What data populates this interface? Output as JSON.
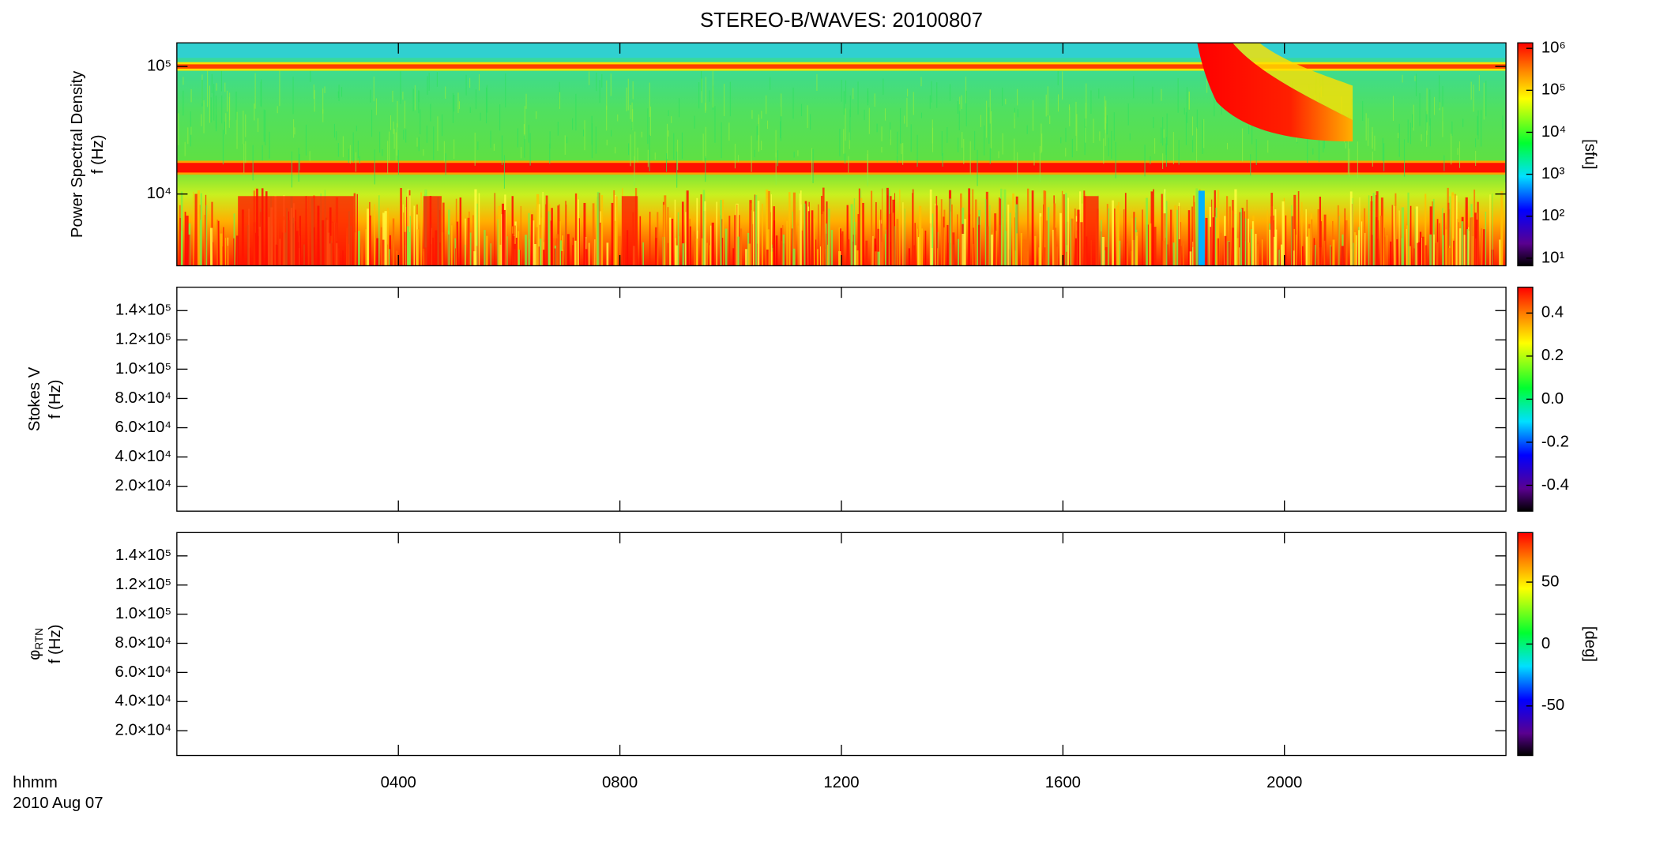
{
  "title": "STEREO-B/WAVES: 20100807",
  "x_axis": {
    "label": "hhmm",
    "date": "2010 Aug 07",
    "xlim": [
      0,
      24
    ],
    "xticks": [
      {
        "value": 4,
        "label": "0400"
      },
      {
        "value": 8,
        "label": "0800"
      },
      {
        "value": 12,
        "label": "1200"
      },
      {
        "value": 16,
        "label": "1600"
      },
      {
        "value": 20,
        "label": "2000"
      }
    ]
  },
  "chart_data": [
    {
      "type": "heatmap",
      "ylabel": "Power Spectral Density",
      "ylabel2": "f (Hz)",
      "log_y": true,
      "ylim": [
        2740,
        153000
      ],
      "yticks": [
        {
          "value": 10000,
          "label": "10⁴"
        },
        {
          "value": 100000,
          "label": "10⁵"
        }
      ],
      "colorbar": {
        "label": "[sfu]",
        "log": true,
        "clim": [
          6.6,
          1350000
        ],
        "ticks": [
          {
            "value": 10,
            "label": "10¹"
          },
          {
            "value": 100,
            "label": "10²"
          },
          {
            "value": 1000,
            "label": "10³"
          },
          {
            "value": 10000,
            "label": "10⁴"
          },
          {
            "value": 100000,
            "label": "10⁵"
          },
          {
            "value": 1000000,
            "label": "10⁶"
          }
        ]
      }
    },
    {
      "type": "heatmap",
      "ylabel": "Stokes V",
      "ylabel2": "f (Hz)",
      "log_y": false,
      "ylim": [
        3000,
        156000
      ],
      "yticks": [
        {
          "value": 20000,
          "label": "2.0×10⁴"
        },
        {
          "value": 40000,
          "label": "4.0×10⁴"
        },
        {
          "value": 60000,
          "label": "6.0×10⁴"
        },
        {
          "value": 80000,
          "label": "8.0×10⁴"
        },
        {
          "value": 100000,
          "label": "1.0×10⁵"
        },
        {
          "value": 120000,
          "label": "1.2×10⁵"
        },
        {
          "value": 140000,
          "label": "1.4×10⁵"
        }
      ],
      "colorbar": {
        "log": false,
        "clim": [
          -0.52,
          0.52
        ],
        "ticks": [
          -0.4,
          -0.2,
          {
            "value": 0,
            "label": "0.0"
          },
          0.2,
          0.4
        ]
      }
    },
    {
      "type": "heatmap",
      "ylabel": "φ",
      "ylabel_sub": "RTN",
      "ylabel2": "f (Hz)",
      "log_y": false,
      "ylim": [
        3000,
        156000
      ],
      "yticks": [
        {
          "value": 20000,
          "label": "2.0×10⁴"
        },
        {
          "value": 40000,
          "label": "4.0×10⁴"
        },
        {
          "value": 60000,
          "label": "6.0×10⁴"
        },
        {
          "value": 80000,
          "label": "8.0×10⁴"
        },
        {
          "value": 100000,
          "label": "1.0×10⁵"
        },
        {
          "value": 120000,
          "label": "1.2×10⁵"
        },
        {
          "value": 140000,
          "label": "1.4×10⁵"
        }
      ],
      "colorbar": {
        "label": "[deg]",
        "log": false,
        "clim": [
          -90,
          90
        ],
        "ticks": [
          -50,
          0,
          50
        ]
      }
    }
  ]
}
